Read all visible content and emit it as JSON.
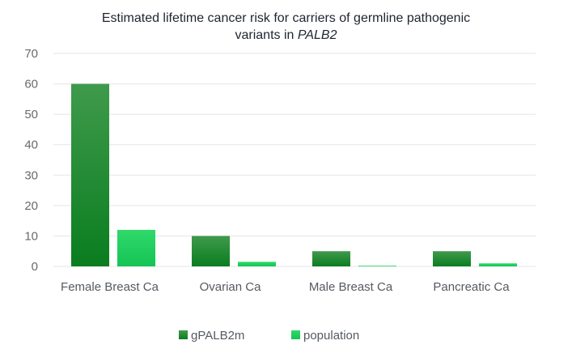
{
  "chart_data": {
    "type": "bar",
    "title_line1": "Estimated lifetime cancer risk for carriers of germline pathogenic",
    "title_line2_prefix": "variants in ",
    "title_line2_italic": "PALB2",
    "categories": [
      "Female Breast Ca",
      "Ovarian Ca",
      "Male Breast Ca",
      "Pancreatic Ca"
    ],
    "series": [
      {
        "name": "gPALB2m",
        "values": [
          60,
          10,
          5,
          5
        ]
      },
      {
        "name": "population",
        "values": [
          12,
          1.5,
          0.2,
          1
        ]
      }
    ],
    "ylim": [
      0,
      70
    ],
    "yticks": [
      "0",
      "10",
      "20",
      "30",
      "40",
      "50",
      "60",
      "70"
    ],
    "grid": true,
    "legend_position": "bottom",
    "colors": {
      "gPALB2m_top": "#3f9a4c",
      "gPALB2m_bottom": "#0a7d1f",
      "population_top": "#2fd96a",
      "population_bottom": "#14c455",
      "grid": "#e4e6e8"
    }
  }
}
